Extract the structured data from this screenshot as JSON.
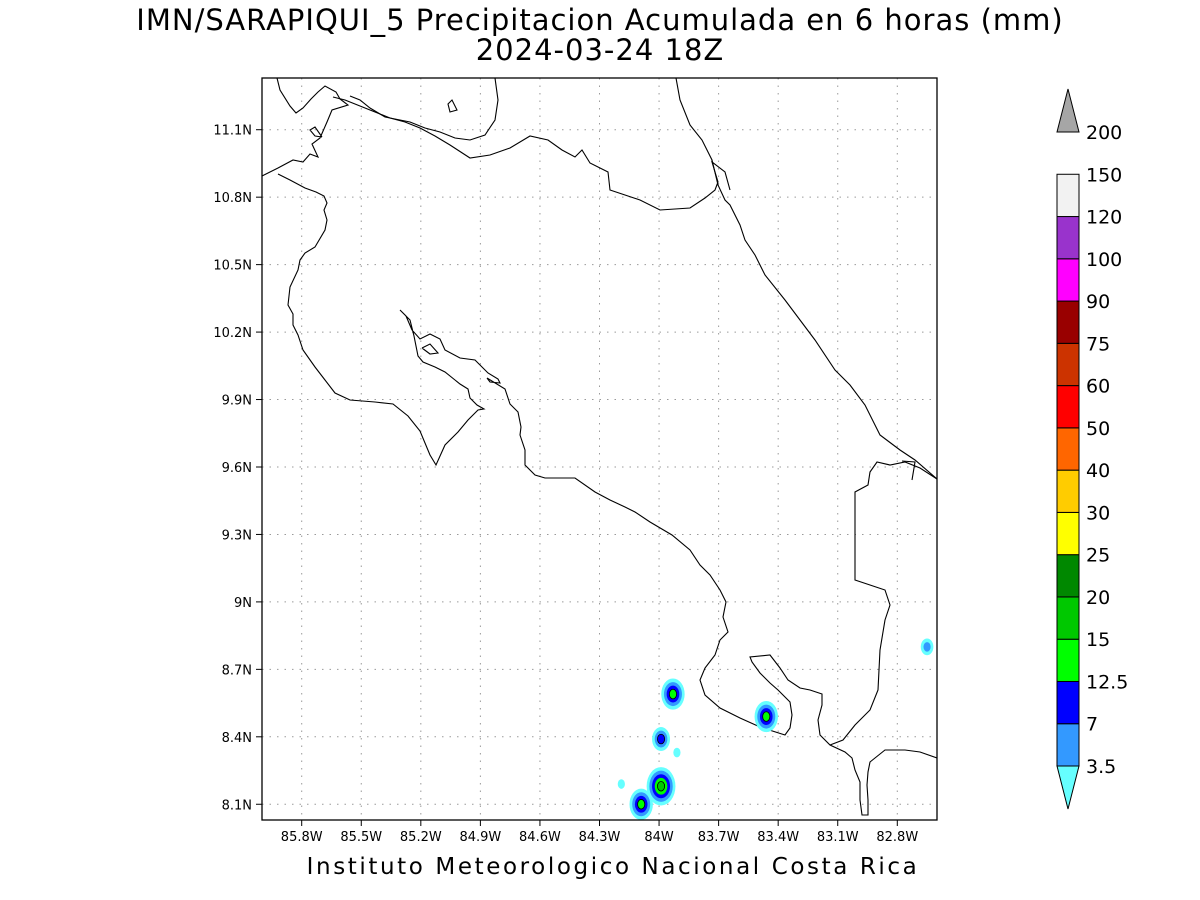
{
  "title": "IMN/SARAPIQUI_5 Precipitacion Acumulada en 6 horas (mm)",
  "subtitle": "2024-03-24 18Z",
  "footer": "Instituto Meteorologico Nacional Costa Rica",
  "map": {
    "lon_range": [
      -86.0,
      -82.6
    ],
    "lat_range": [
      8.03,
      11.33
    ],
    "lon_ticks": [
      {
        "value": -85.8,
        "label": "85.8W"
      },
      {
        "value": -85.5,
        "label": "85.5W"
      },
      {
        "value": -85.2,
        "label": "85.2W"
      },
      {
        "value": -84.9,
        "label": "84.9W"
      },
      {
        "value": -84.6,
        "label": "84.6W"
      },
      {
        "value": -84.3,
        "label": "84.3W"
      },
      {
        "value": -84.0,
        "label": "84W"
      },
      {
        "value": -83.7,
        "label": "83.7W"
      },
      {
        "value": -83.4,
        "label": "83.4W"
      },
      {
        "value": -83.1,
        "label": "83.1W"
      },
      {
        "value": -82.8,
        "label": "82.8W"
      }
    ],
    "lat_ticks": [
      {
        "value": 11.1,
        "label": "11.1N"
      },
      {
        "value": 10.8,
        "label": "10.8N"
      },
      {
        "value": 10.5,
        "label": "10.5N"
      },
      {
        "value": 10.2,
        "label": "10.2N"
      },
      {
        "value": 9.9,
        "label": "9.9N"
      },
      {
        "value": 9.6,
        "label": "9.6N"
      },
      {
        "value": 9.3,
        "label": "9.3N"
      },
      {
        "value": 9.0,
        "label": "9N"
      },
      {
        "value": 8.7,
        "label": "8.7N"
      },
      {
        "value": 8.4,
        "label": "8.4N"
      },
      {
        "value": 8.1,
        "label": "8.1N"
      }
    ],
    "grid": true
  },
  "colorbar": {
    "levels": [
      "3.5",
      "7",
      "12.5",
      "15",
      "20",
      "25",
      "30",
      "40",
      "50",
      "60",
      "75",
      "90",
      "100",
      "120",
      "150",
      "200"
    ],
    "colors": [
      "#66ffff",
      "#3399ff",
      "#0000ff",
      "#00ff00",
      "#00c800",
      "#008800",
      "#ffff00",
      "#ffcc00",
      "#ff6600",
      "#ff0000",
      "#cc3300",
      "#990000",
      "#ff00ff",
      "#9933cc",
      "#f2f2f2",
      "#a6a6a6"
    ]
  },
  "precip_cells": [
    {
      "lon": -83.93,
      "lat": 8.59,
      "level_index": 3
    },
    {
      "lon": -83.99,
      "lat": 8.39,
      "level_index": 2
    },
    {
      "lon": -83.91,
      "lat": 8.33,
      "level_index": 0
    },
    {
      "lon": -83.99,
      "lat": 8.18,
      "level_index": 4
    },
    {
      "lon": -84.09,
      "lat": 8.1,
      "level_index": 3
    },
    {
      "lon": -83.46,
      "lat": 8.49,
      "level_index": 3
    },
    {
      "lon": -82.65,
      "lat": 8.8,
      "level_index": 1
    },
    {
      "lon": -84.19,
      "lat": 8.19,
      "level_index": 0
    }
  ]
}
